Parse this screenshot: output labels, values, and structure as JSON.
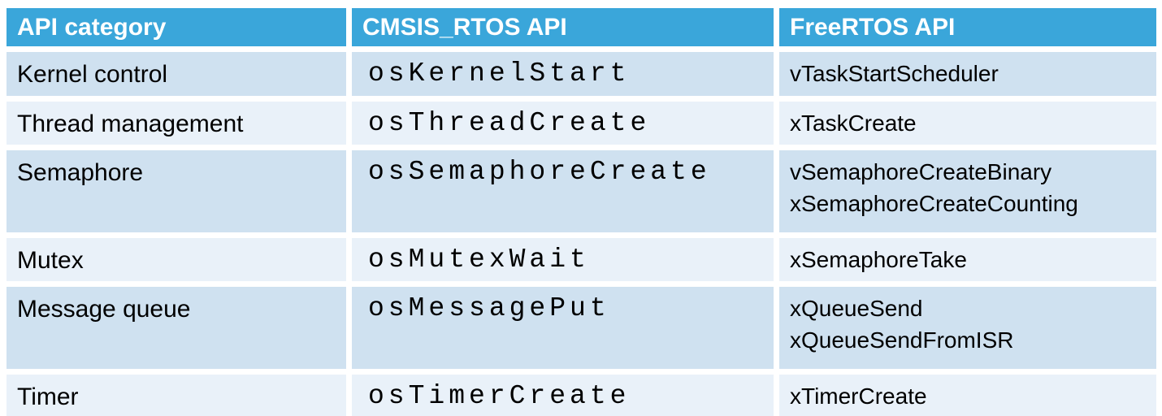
{
  "table": {
    "columns": [
      {
        "label": "API category"
      },
      {
        "label": "CMSIS_RTOS API"
      },
      {
        "label": "FreeRTOS API"
      }
    ],
    "rows": [
      {
        "category": "Kernel control",
        "cmsis_api": "osKernelStart",
        "freertos_apis": [
          "vTaskStartScheduler"
        ]
      },
      {
        "category": "Thread management",
        "cmsis_api": "osThreadCreate",
        "freertos_apis": [
          "xTaskCreate"
        ]
      },
      {
        "category": "Semaphore",
        "cmsis_api": "osSemaphoreCreate",
        "freertos_apis": [
          "vSemaphoreCreateBinary",
          "xSemaphoreCreateCounting"
        ]
      },
      {
        "category": "Mutex",
        "cmsis_api": "osMutexWait",
        "freertos_apis": [
          "xSemaphoreTake"
        ]
      },
      {
        "category": "Message queue",
        "cmsis_api": "osMessagePut",
        "freertos_apis": [
          "xQueueSend",
          "xQueueSendFromISR"
        ]
      },
      {
        "category": "Timer",
        "cmsis_api": "osTimerCreate",
        "freertos_apis": [
          "xTimerCreate"
        ]
      }
    ],
    "colors": {
      "header_bg": "#3AA6DA",
      "header_text": "#FFFFFF",
      "row_band_dark": "#CFE1F0",
      "row_band_light": "#E9F1F9",
      "body_text": "#000000",
      "grid_gap": "#FFFFFF"
    }
  }
}
